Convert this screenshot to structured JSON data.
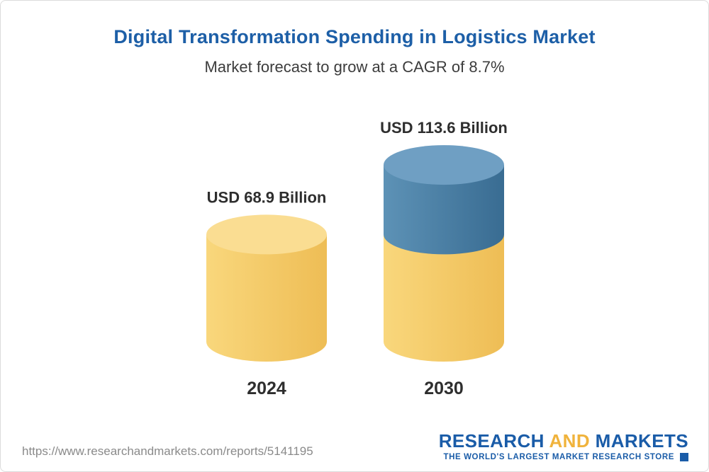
{
  "chart_data": {
    "type": "bar",
    "variant": "cylinder-3d",
    "title": "Digital Transformation Spending in Logistics Market",
    "subtitle": "Market forecast to grow at a CAGR of 8.7%",
    "categories": [
      "2024",
      "2030"
    ],
    "values": [
      68.9,
      113.6
    ],
    "value_labels": [
      "USD 68.9 Billion",
      "USD 113.6 Billion"
    ],
    "unit": "USD Billion",
    "ylim": [
      0,
      120
    ],
    "grid": false,
    "legend": false,
    "stacking_note": "2030 bar shows the 2024 baseline in gold with incremental growth shown in blue on top",
    "colors": {
      "bar_2024_body": [
        "#f9d77c",
        "#eebd55"
      ],
      "bar_2024_top": "#fadd92",
      "bar_2030_body": [
        "#5d92b6",
        "#396c92"
      ],
      "bar_2030_top": "#6f9fc3",
      "label": "#2e2e2e",
      "title": "#1d5fa7"
    }
  },
  "footer": {
    "url": "https://www.researchandmarkets.com/reports/5141195",
    "logo": {
      "word1": "RESEARCH",
      "word2": "AND",
      "word3": "MARKETS",
      "tagline": "THE WORLD'S LARGEST MARKET RESEARCH STORE",
      "brand_blue": "#1a5ca8",
      "brand_gold": "#f0b33c"
    }
  }
}
